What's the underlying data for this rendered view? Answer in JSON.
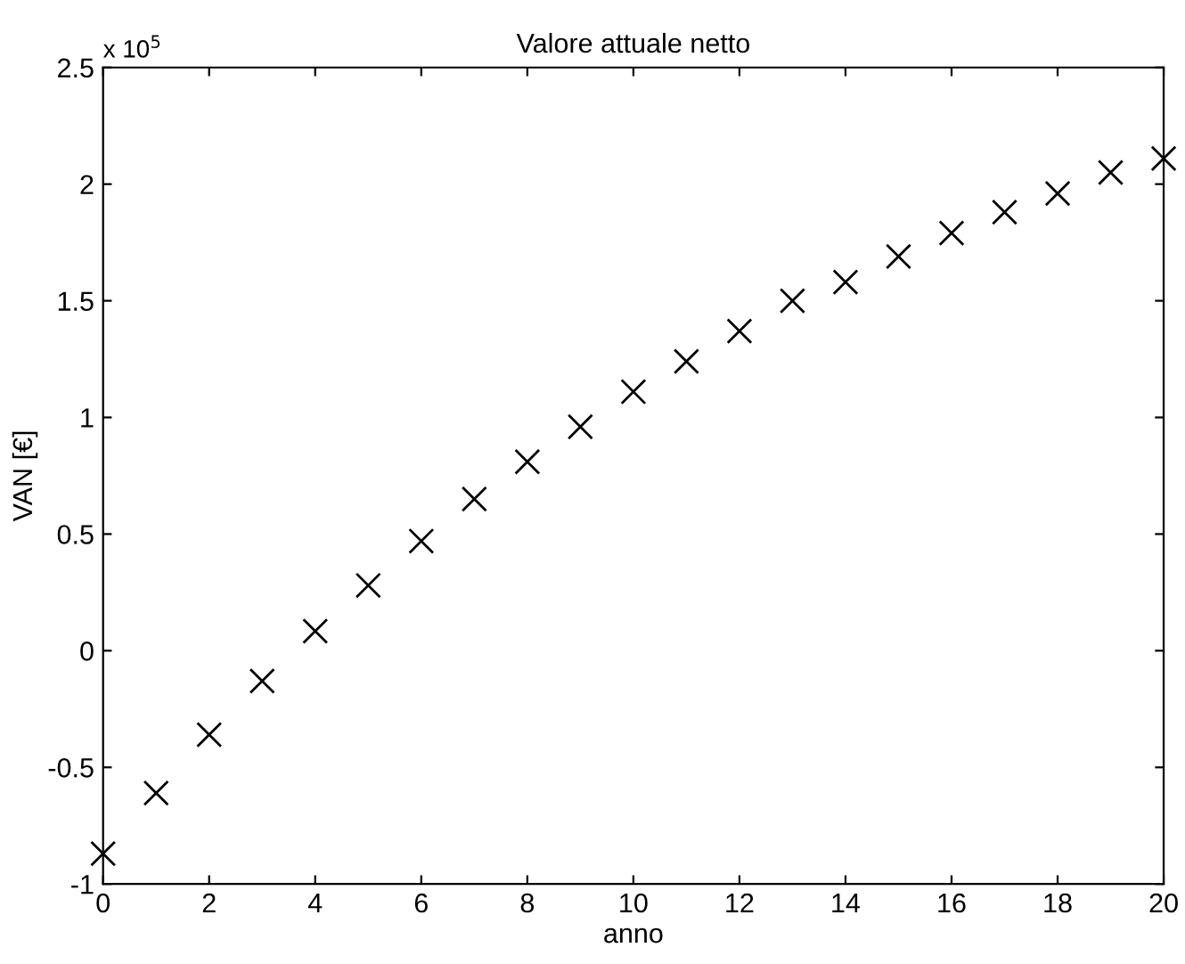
{
  "chart_data": {
    "type": "scatter",
    "title": "Valore attuale netto",
    "xlabel": "anno",
    "ylabel": "VAN [€]",
    "annotations": [
      "x 10$^{5}$"
    ],
    "x": [
      0,
      1,
      2,
      3,
      4,
      5,
      6,
      7,
      8,
      9,
      10,
      11,
      12,
      13,
      14,
      15,
      16,
      17,
      18,
      19,
      20
    ],
    "values": [
      -0.87,
      -0.61,
      -0.36,
      -0.13,
      0.084,
      0.28,
      0.47,
      0.65,
      0.81,
      0.96,
      1.11,
      1.24,
      1.37,
      1.5,
      1.58,
      1.69,
      1.79,
      1.88,
      1.96,
      2.05,
      2.11
    ],
    "color": "#000000",
    "marker": "cross",
    "grid": false,
    "legend": false,
    "xlim": [
      0,
      20
    ],
    "xticks": [
      0,
      2,
      4,
      6,
      8,
      10,
      12,
      14,
      16,
      18,
      20
    ],
    "ylim": [
      -1,
      2.5
    ],
    "yticks": [
      -1,
      -0.5,
      0,
      0.5,
      1,
      1.5,
      2,
      2.5
    ]
  }
}
